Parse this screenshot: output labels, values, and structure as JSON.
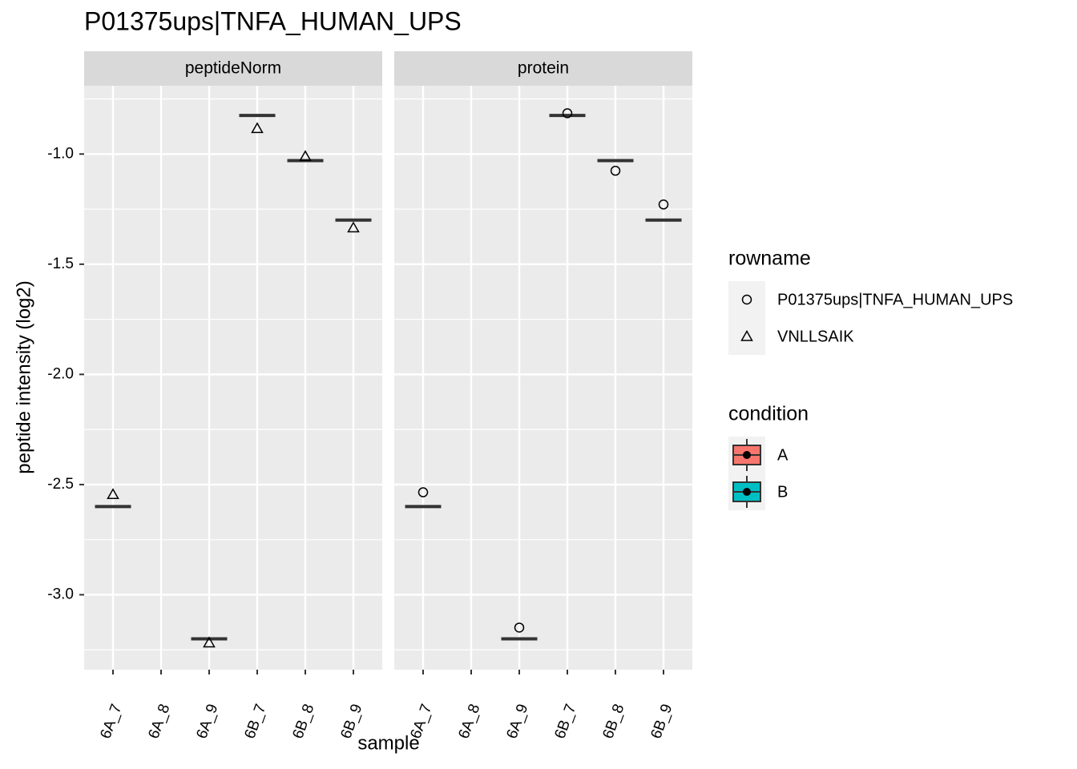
{
  "chart_data": {
    "type": "box",
    "title": "P01375ups|TNFA_HUMAN_UPS",
    "x_label": "sample",
    "y_label": "peptide intensity (log2)",
    "categories": [
      "6A_7",
      "6A_8",
      "6A_9",
      "6B_7",
      "6B_8",
      "6B_9"
    ],
    "ylim": [
      -3.34,
      -0.69
    ],
    "yticks": [
      {
        "value": -1,
        "label": "-1.0"
      },
      {
        "value": -1.5,
        "label": "-1.5"
      },
      {
        "value": -2,
        "label": "-2.0"
      },
      {
        "value": -2.5,
        "label": "-2.5"
      },
      {
        "value": -3,
        "label": "-3.0"
      }
    ],
    "yminor": [
      -0.75,
      -1.25,
      -1.75,
      -2.25,
      -2.75,
      -3.25
    ],
    "grid": true,
    "facets": [
      {
        "strip": "peptideNorm",
        "medians": [
          -2.6,
          null,
          -3.2,
          -0.825,
          -1.03,
          -1.3
        ],
        "series": {
          "name": "VNLLSAIK",
          "values": [
            -2.545,
            null,
            -3.218,
            -0.884,
            -1.011,
            -1.335
          ]
        }
      },
      {
        "strip": "protein",
        "medians": [
          -2.6,
          null,
          -3.2,
          -0.825,
          -1.03,
          -1.3
        ],
        "series": {
          "name": "P01375ups|TNFA_HUMAN_UPS",
          "values": [
            -2.535,
            null,
            -3.149,
            -0.815,
            -1.076,
            -1.229
          ]
        }
      }
    ],
    "legends": [
      {
        "title": "rowname",
        "entries": [
          "P01375ups|TNFA_HUMAN_UPS",
          "VNLLSAIK"
        ],
        "shapes": [
          "circle",
          "triangle"
        ]
      },
      {
        "title": "condition",
        "entries": [
          "A",
          "B"
        ],
        "colors": [
          "#f8766d",
          "#00bfc4"
        ]
      }
    ]
  }
}
